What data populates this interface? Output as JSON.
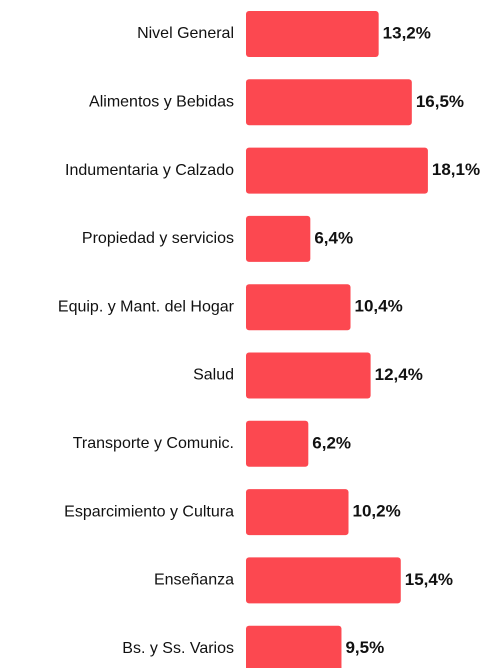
{
  "chart_data": {
    "type": "bar",
    "orientation": "horizontal",
    "categories": [
      "Nivel General",
      "Alimentos y Bebidas",
      "Indumentaria y Calzado",
      "Propiedad y servicios",
      "Equip. y Mant. del Hogar",
      "Salud",
      "Transporte y Comunic.",
      "Esparcimiento y Cultura",
      "Enseñanza",
      "Bs. y Ss. Varios"
    ],
    "values": [
      13.2,
      16.5,
      18.1,
      6.4,
      10.4,
      12.4,
      6.2,
      10.2,
      15.4,
      9.5
    ],
    "value_labels": [
      "13,2%",
      "16,5%",
      "18,1%",
      "6,4%",
      "10,4%",
      "12,4%",
      "6,2%",
      "10,2%",
      "15,4%",
      "9,5%"
    ],
    "color": "#fc4850"
  }
}
